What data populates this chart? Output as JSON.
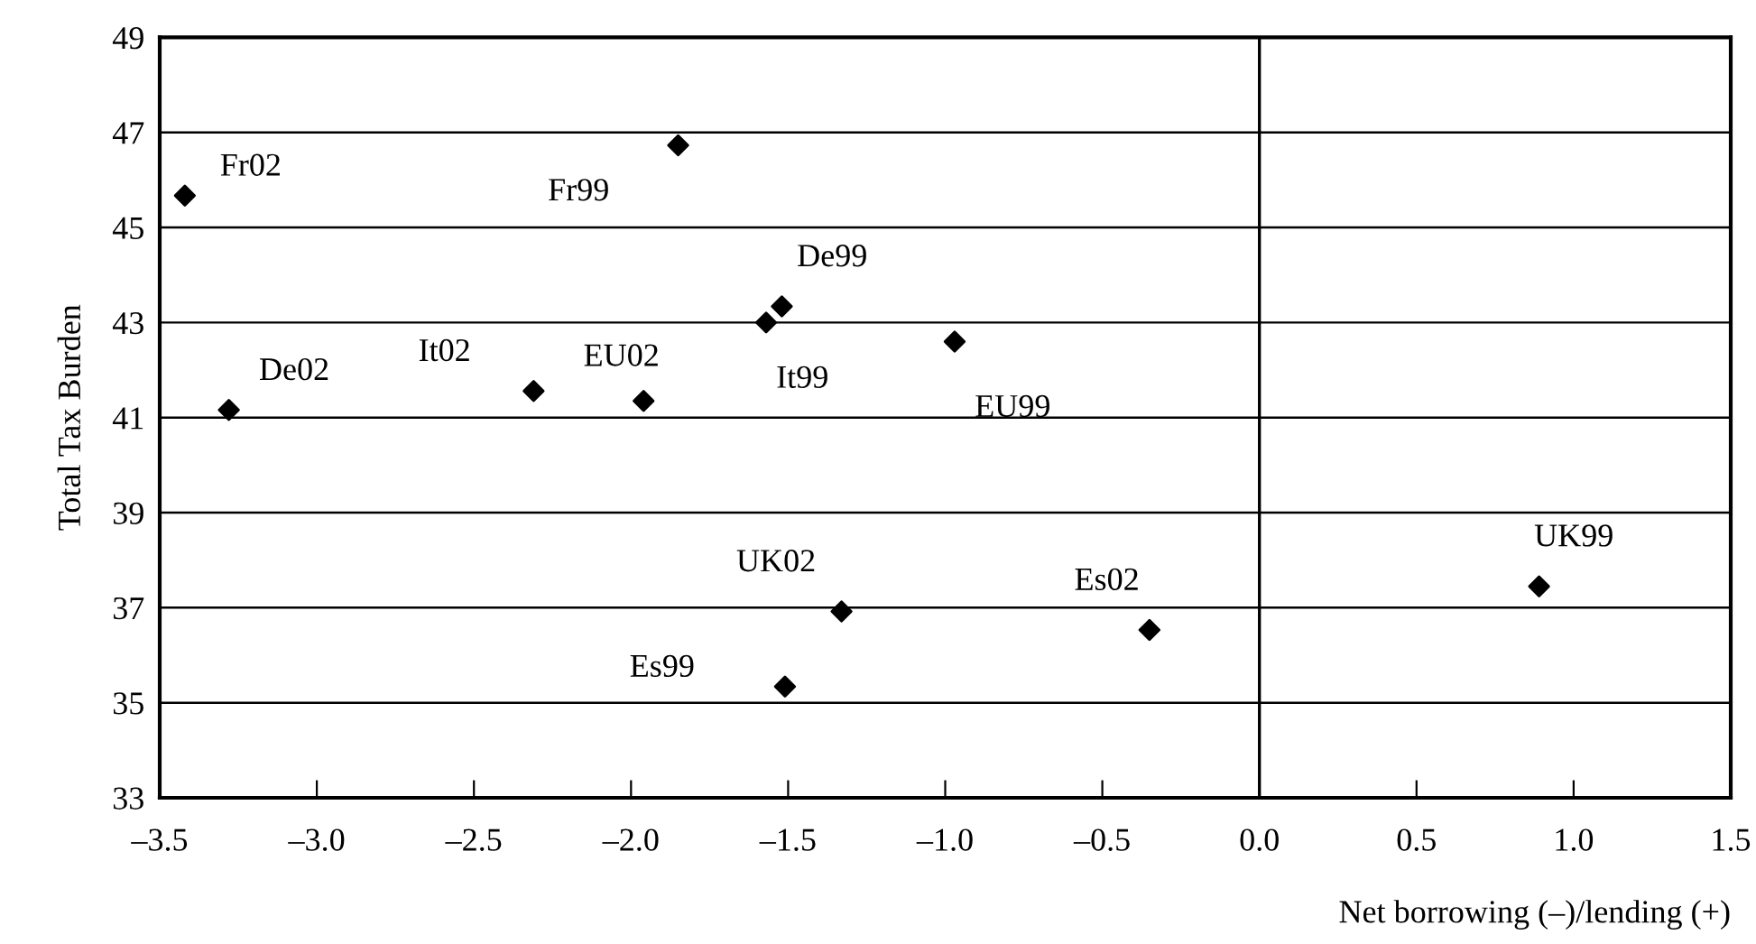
{
  "chart_data": {
    "type": "scatter",
    "xlabel": "Net borrowing (–)/lending (+)",
    "ylabel": "Total Tax Burden",
    "series": [
      {
        "color": "#000000",
        "x": [
          -3.42,
          -1.85,
          -1.52,
          -1.57,
          -3.28,
          -2.31,
          -1.96,
          -0.97,
          -1.33,
          -1.51,
          -0.35,
          0.89
        ],
        "values": [
          45.67,
          46.73,
          43.34,
          43.0,
          41.16,
          41.56,
          41.35,
          42.6,
          36.92,
          35.34,
          36.53,
          37.45
        ]
      }
    ],
    "annotations": [
      {
        "text": "Fr02",
        "x": -3.42,
        "y": 45.67
      },
      {
        "text": "Fr99",
        "x": -1.85,
        "y": 46.73
      },
      {
        "text": "De99",
        "x": -1.52,
        "y": 43.34
      },
      {
        "text": "It99",
        "x": -1.57,
        "y": 43.0
      },
      {
        "text": "De02",
        "x": -3.28,
        "y": 41.16
      },
      {
        "text": "It02",
        "x": -2.31,
        "y": 41.56
      },
      {
        "text": "EU02",
        "x": -1.96,
        "y": 41.35
      },
      {
        "text": "EU99",
        "x": -0.97,
        "y": 42.6
      },
      {
        "text": "UK02",
        "x": -1.33,
        "y": 36.92
      },
      {
        "text": "Es99",
        "x": -1.51,
        "y": 35.34
      },
      {
        "text": "Es02",
        "x": -0.35,
        "y": 36.53
      },
      {
        "text": "UK99",
        "x": 0.89,
        "y": 37.45
      }
    ],
    "xlim": [
      -3.5,
      1.5
    ],
    "xticks": [
      {
        "value": -3.5,
        "label": "–3.5"
      },
      {
        "value": -3.0,
        "label": "–3.0"
      },
      {
        "value": -2.5,
        "label": "–2.5"
      },
      {
        "value": -2.0,
        "label": "–2.0"
      },
      {
        "value": -1.5,
        "label": "–1.5"
      },
      {
        "value": -1.0,
        "label": "–1.0"
      },
      {
        "value": -0.5,
        "label": "–0.5"
      },
      {
        "value": 0,
        "label": "0.0"
      },
      {
        "value": 0.5,
        "label": "0.5"
      },
      {
        "value": 1,
        "label": "1.0"
      },
      {
        "value": 1.5,
        "label": "1.5"
      }
    ],
    "ylim": [
      33,
      49
    ],
    "yticks": [
      33,
      35,
      37,
      39,
      41,
      43,
      45,
      47,
      49
    ],
    "ref_lines": [
      {
        "axis": "x",
        "value": 0,
        "color": "#000000"
      }
    ],
    "grid": "y",
    "marker": "diamond",
    "legend": false
  }
}
